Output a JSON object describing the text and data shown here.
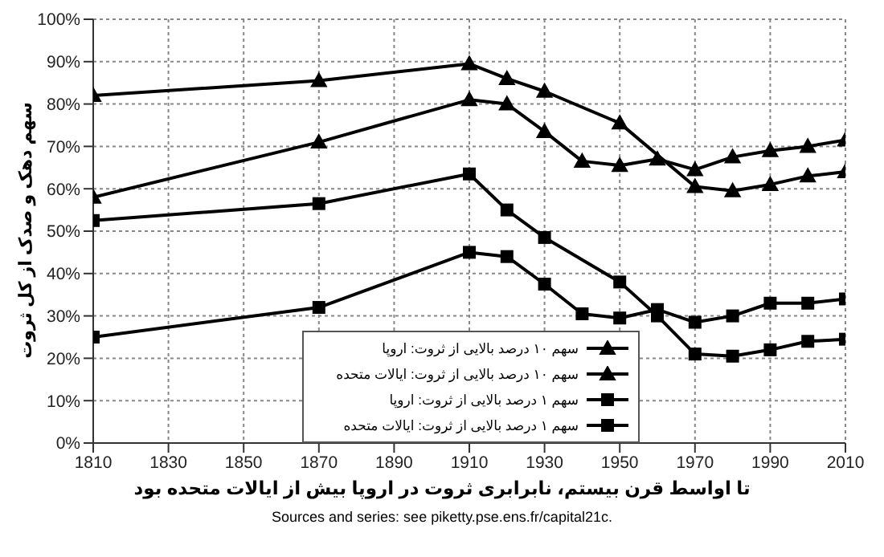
{
  "chart_data": {
    "type": "line",
    "xlabel": "تا اواسط قرن بیستم، نابرابری ثروت در اروپا بیش از ایالات متحده بود",
    "ylabel": "سهم دهک و صدک از کل ثروت",
    "annotations": [
      "Sources and series: see piketty.pse.ens.fr/capital21c."
    ],
    "series": [
      {
        "name": "سهم ۱۰ درصد بالایی از ثروت: اروپا",
        "color": "#000000",
        "marker": "triangle",
        "x": [
          1810,
          1870,
          1910,
          1920,
          1930,
          1950,
          1970,
          1980,
          1990,
          2000,
          2010
        ],
        "values": [
          82,
          85.5,
          89.5,
          86,
          83,
          75.5,
          60.5,
          59.5,
          61,
          63,
          64
        ]
      },
      {
        "name": "سهم ۱۰ درصد بالایی از ثروت: ایالات متحده",
        "color": "#000000",
        "marker": "triangle",
        "x": [
          1810,
          1870,
          1910,
          1920,
          1930,
          1940,
          1950,
          1960,
          1970,
          1980,
          1990,
          2000,
          2010
        ],
        "values": [
          58,
          71,
          81,
          80,
          73.5,
          66.5,
          65.5,
          67,
          64.5,
          67.5,
          69,
          70,
          71.5
        ]
      },
      {
        "name": "سهم ۱ درصد بالایی از ثروت: اروپا",
        "color": "#000000",
        "marker": "square",
        "x": [
          1810,
          1870,
          1910,
          1920,
          1930,
          1950,
          1960,
          1970,
          1980,
          1990,
          2000,
          2010
        ],
        "values": [
          52.5,
          56.5,
          63.5,
          55,
          48.5,
          38,
          30,
          21,
          20.5,
          22,
          24,
          24.5
        ]
      },
      {
        "name": "سهم ۱ درصد بالایی از ثروت: ایالات متحده",
        "color": "#000000",
        "marker": "square",
        "x": [
          1810,
          1870,
          1910,
          1920,
          1930,
          1940,
          1950,
          1960,
          1970,
          1980,
          1990,
          2000,
          2010
        ],
        "values": [
          25,
          32,
          45,
          44,
          37.5,
          30.5,
          29.5,
          31.5,
          28.5,
          30,
          33,
          33,
          34
        ]
      }
    ],
    "xlim": [
      1810,
      2010
    ],
    "xticks": [
      1810,
      1830,
      1850,
      1870,
      1890,
      1910,
      1930,
      1950,
      1970,
      1990,
      2010
    ],
    "ylim": [
      0,
      100
    ],
    "yticks": [
      {
        "value": 0,
        "label": "0%"
      },
      {
        "value": 10,
        "label": "10%"
      },
      {
        "value": 20,
        "label": "20%"
      },
      {
        "value": 30,
        "label": "30%"
      },
      {
        "value": 40,
        "label": "40%"
      },
      {
        "value": 50,
        "label": "50%"
      },
      {
        "value": 60,
        "label": "60%"
      },
      {
        "value": 70,
        "label": "70%"
      },
      {
        "value": 80,
        "label": "80%"
      },
      {
        "value": 90,
        "label": "90%"
      },
      {
        "value": 100,
        "label": "100%"
      }
    ],
    "grid": true,
    "legend": "bottom",
    "line_style": "solid"
  }
}
